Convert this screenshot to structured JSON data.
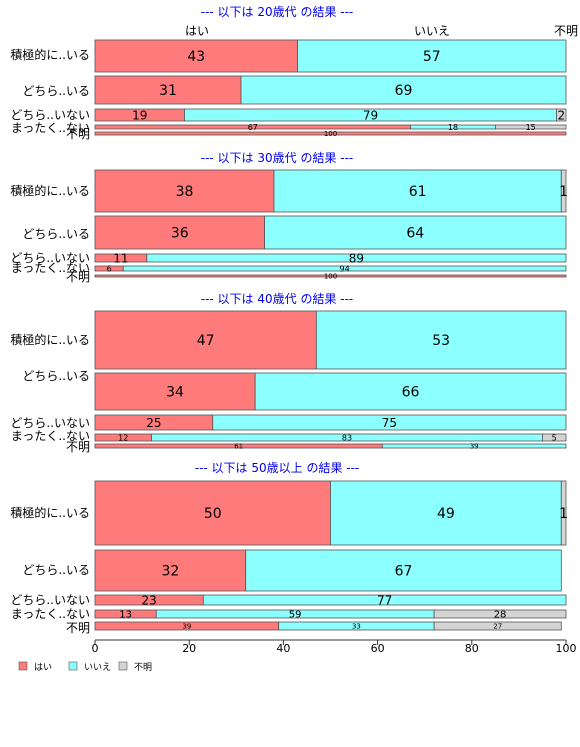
{
  "chart_data": {
    "type": "bar",
    "orientation": "horizontal",
    "stacked": true,
    "header_labels": [
      "はい",
      "いいえ",
      "不明"
    ],
    "series": [
      {
        "name": "はい",
        "color": "#ff7b7b"
      },
      {
        "name": "いいえ",
        "color": "#8cffff"
      },
      {
        "name": "不明",
        "color": "#d4d4d4"
      }
    ],
    "panels": [
      {
        "title": "--- 以下は 20歳代 の結果 ---",
        "rows": [
          {
            "label": "積極的に..いる",
            "values": [
              43,
              57,
              0
            ]
          },
          {
            "label": "どちら..いる",
            "values": [
              31,
              69,
              0
            ]
          },
          {
            "label": "どちら..いない",
            "values": [
              19,
              79,
              2
            ]
          },
          {
            "label": "まったく..ない",
            "values": [
              67,
              18,
              15
            ]
          },
          {
            "label": "不明",
            "values": [
              100,
              0,
              0
            ]
          }
        ]
      },
      {
        "title": "--- 以下は 30歳代 の結果 ---",
        "rows": [
          {
            "label": "積極的に..いる",
            "values": [
              38,
              61,
              1
            ]
          },
          {
            "label": "どちら..いる",
            "values": [
              36,
              64,
              0
            ]
          },
          {
            "label": "どちら..いない",
            "values": [
              11,
              89,
              0
            ]
          },
          {
            "label": "まったく..ない",
            "values": [
              6,
              94,
              0
            ]
          },
          {
            "label": "不明",
            "values": [
              100,
              0,
              0
            ]
          }
        ]
      },
      {
        "title": "--- 以下は 40歳代 の結果 ---",
        "rows": [
          {
            "label": "積極的に..いる",
            "values": [
              47,
              53,
              0
            ]
          },
          {
            "label": "どちら..いる",
            "values": [
              34,
              66,
              0
            ]
          },
          {
            "label": "どちら..いない",
            "values": [
              25,
              75,
              0
            ]
          },
          {
            "label": "まったく..ない",
            "values": [
              12,
              83,
              5
            ]
          },
          {
            "label": "不明",
            "values": [
              61,
              39,
              0
            ]
          }
        ]
      },
      {
        "title": "--- 以下は 50歳以上 の結果 ---",
        "rows": [
          {
            "label": "積極的に..いる",
            "values": [
              50,
              49,
              1
            ]
          },
          {
            "label": "どちら..いる",
            "values": [
              32,
              67,
              0
            ]
          },
          {
            "label": "どちら..いない",
            "values": [
              23,
              77,
              0
            ]
          },
          {
            "label": "まったく..ない",
            "values": [
              13,
              59,
              28
            ]
          },
          {
            "label": "不明",
            "values": [
              39,
              33,
              27
            ]
          }
        ]
      }
    ],
    "x_ticks": [
      0,
      20,
      40,
      60,
      80,
      100
    ],
    "xlim": [
      0,
      100
    ],
    "legend_position": "bottom-left",
    "colors": {
      "title": "#0000ee",
      "border": "#555555"
    }
  }
}
